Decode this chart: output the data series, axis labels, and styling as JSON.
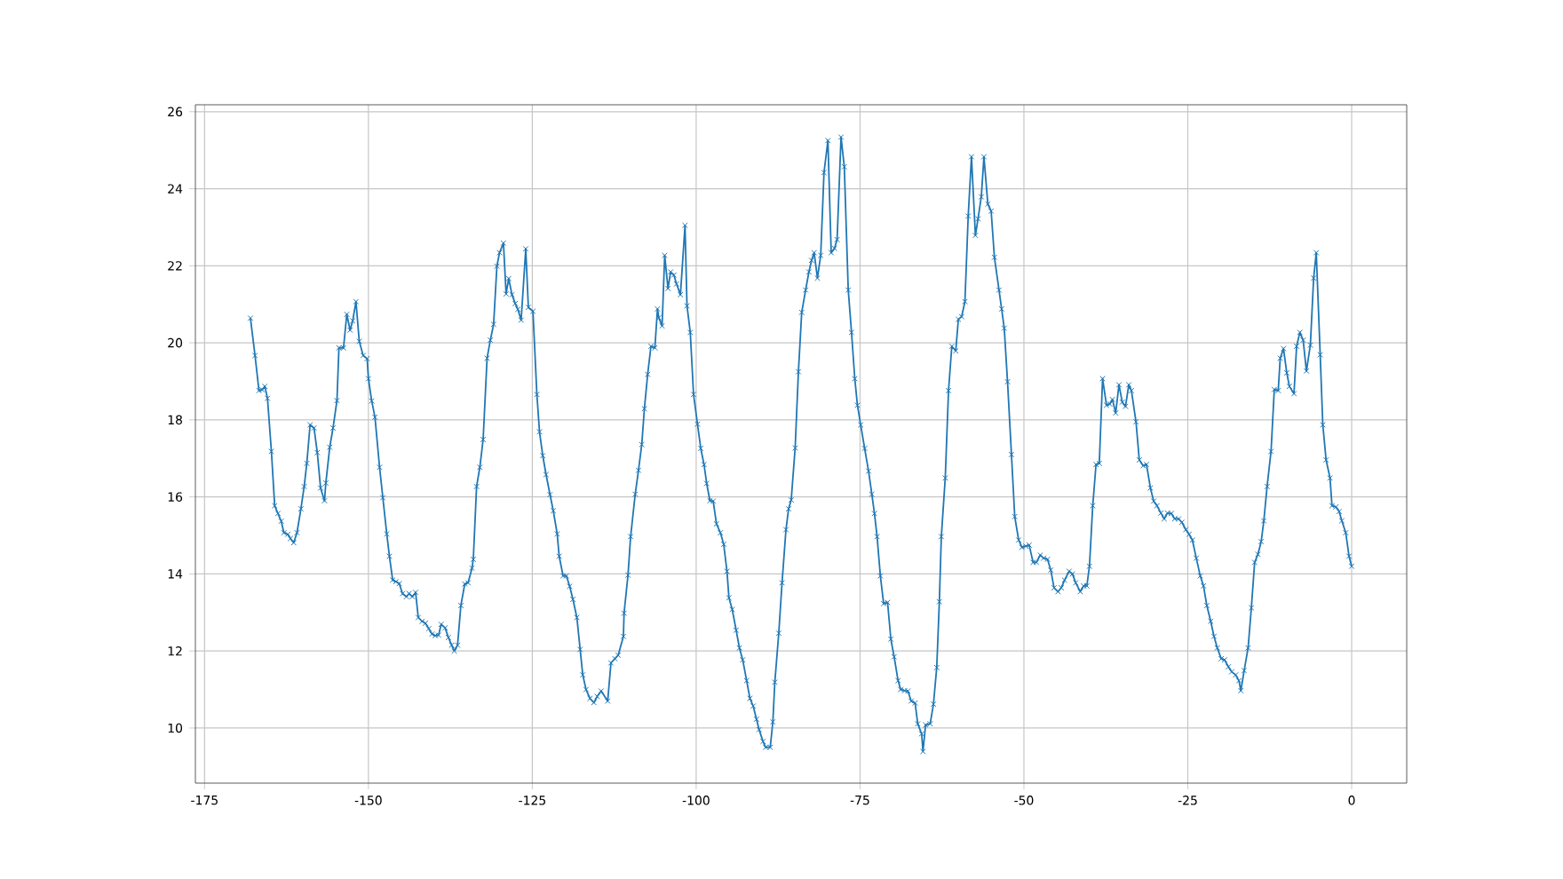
{
  "chart_data": {
    "type": "line",
    "color": "#1f77b4",
    "marker": "cross",
    "line_style": "solid",
    "grid": true,
    "xlim": [
      -176.4,
      8.4
    ],
    "ylim": [
      8.57,
      26.18
    ],
    "xticks": [
      -175,
      -150,
      -125,
      -100,
      -75,
      -50,
      -25,
      0
    ],
    "yticks": [
      10,
      12,
      14,
      16,
      18,
      20,
      22,
      24,
      26
    ],
    "x": [
      -168.0,
      -167.3,
      -166.7,
      -166.2,
      -165.8,
      -165.4,
      -164.8,
      -164.3,
      -163.8,
      -163.3,
      -162.9,
      -162.3,
      -161.9,
      -161.4,
      -160.9,
      -160.3,
      -159.8,
      -159.4,
      -158.9,
      -158.3,
      -157.8,
      -157.3,
      -156.7,
      -156.5,
      -155.9,
      -155.4,
      -154.8,
      -154.5,
      -153.8,
      -153.3,
      -152.8,
      -152.4,
      -151.9,
      -151.4,
      -150.8,
      -150.2,
      -150.0,
      -149.5,
      -149.0,
      -148.3,
      -147.8,
      -147.2,
      -146.8,
      -146.3,
      -145.8,
      -145.3,
      -144.8,
      -144.2,
      -143.8,
      -143.3,
      -142.8,
      -142.4,
      -141.8,
      -141.3,
      -140.8,
      -140.3,
      -139.8,
      -139.3,
      -138.9,
      -138.3,
      -137.8,
      -137.3,
      -136.9,
      -136.4,
      -135.9,
      -135.3,
      -134.8,
      -134.2,
      -134.0,
      -133.5,
      -133.0,
      -132.5,
      -131.9,
      -131.4,
      -130.9,
      -130.4,
      -130.0,
      -129.4,
      -129.0,
      -128.6,
      -128.1,
      -127.6,
      -127.2,
      -126.7,
      -126.0,
      -125.6,
      -124.9,
      -124.3,
      -123.9,
      -123.4,
      -122.9,
      -122.3,
      -121.8,
      -121.2,
      -120.9,
      -120.3,
      -119.8,
      -119.3,
      -118.8,
      -118.2,
      -117.7,
      -117.3,
      -116.8,
      -116.2,
      -115.6,
      -115.1,
      -114.5,
      -113.5,
      -113.0,
      -112.4,
      -111.9,
      -111.1,
      -111.0,
      -110.4,
      -110.0,
      -109.3,
      -108.8,
      -108.3,
      -107.9,
      -107.4,
      -106.9,
      -106.3,
      -105.9,
      -105.7,
      -105.2,
      -104.8,
      -104.3,
      -103.9,
      -103.4,
      -103.0,
      -102.4,
      -101.7,
      -101.4,
      -100.9,
      -100.4,
      -99.8,
      -99.3,
      -98.8,
      -98.4,
      -97.9,
      -97.4,
      -96.9,
      -96.3,
      -95.8,
      -95.3,
      -95.0,
      -94.5,
      -93.9,
      -93.4,
      -92.9,
      -92.3,
      -91.8,
      -91.3,
      -90.8,
      -90.4,
      -89.8,
      -89.4,
      -88.7,
      -88.3,
      -88.0,
      -87.4,
      -86.9,
      -86.3,
      -85.9,
      -85.5,
      -84.9,
      -84.4,
      -83.9,
      -83.3,
      -82.8,
      -82.4,
      -82.0,
      -81.5,
      -81.0,
      -80.5,
      -79.9,
      -79.4,
      -78.9,
      -78.5,
      -77.9,
      -77.4,
      -76.8,
      -76.3,
      -75.8,
      -75.4,
      -74.9,
      -74.3,
      -73.7,
      -73.2,
      -72.8,
      -72.4,
      -71.9,
      -71.4,
      -70.8,
      -70.3,
      -69.8,
      -69.2,
      -68.8,
      -68.2,
      -67.7,
      -67.2,
      -66.6,
      -66.2,
      -65.6,
      -65.4,
      -65.0,
      -64.3,
      -63.8,
      -63.3,
      -62.9,
      -62.6,
      -62.0,
      -61.5,
      -61.0,
      -60.4,
      -60.0,
      -59.5,
      -59.0,
      -58.5,
      -58.0,
      -57.4,
      -57.0,
      -56.5,
      -56.1,
      -55.5,
      -55.0,
      -54.5,
      -53.8,
      -53.4,
      -53.0,
      -52.5,
      -51.9,
      -51.4,
      -50.8,
      -50.3,
      -49.7,
      -49.2,
      -48.6,
      -48.1,
      -47.5,
      -47.0,
      -46.4,
      -45.9,
      -45.4,
      -44.8,
      -44.3,
      -43.8,
      -43.1,
      -42.6,
      -42.1,
      -41.4,
      -40.9,
      -40.4,
      -40.0,
      -39.5,
      -39.0,
      -38.5,
      -38.0,
      -37.4,
      -36.9,
      -36.5,
      -36.0,
      -35.5,
      -35.0,
      -34.5,
      -34.0,
      -33.6,
      -32.9,
      -32.4,
      -31.8,
      -31.3,
      -30.7,
      -30.2,
      -29.7,
      -29.1,
      -28.6,
      -28.1,
      -27.5,
      -27.0,
      -26.4,
      -25.9,
      -25.3,
      -24.8,
      -24.3,
      -23.7,
      -23.1,
      -22.6,
      -22.1,
      -21.5,
      -21.0,
      -20.5,
      -19.9,
      -19.4,
      -18.8,
      -18.3,
      -17.7,
      -17.2,
      -16.9,
      -16.4,
      -15.8,
      -15.3,
      -14.8,
      -14.3,
      -13.8,
      -13.4,
      -12.9,
      -12.3,
      -11.8,
      -11.2,
      -10.9,
      -10.4,
      -9.9,
      -9.5,
      -8.8,
      -8.4,
      -7.9,
      -7.4,
      -6.9,
      -6.3,
      -5.8,
      -5.4,
      -4.8,
      -4.4,
      -3.9,
      -3.3,
      -3.0,
      -2.4,
      -1.9,
      -1.5,
      -0.9,
      -0.4,
      0.0
    ],
    "values": [
      20.64,
      19.67,
      18.76,
      18.78,
      18.87,
      18.56,
      17.18,
      15.77,
      15.57,
      15.37,
      15.07,
      15.03,
      14.92,
      14.81,
      15.07,
      15.69,
      16.27,
      16.87,
      17.87,
      17.79,
      17.15,
      16.23,
      15.9,
      16.36,
      17.29,
      17.79,
      18.5,
      19.87,
      19.87,
      20.74,
      20.33,
      20.57,
      21.07,
      20.04,
      19.67,
      19.59,
      19.07,
      18.49,
      18.07,
      16.77,
      15.98,
      15.04,
      14.46,
      13.84,
      13.8,
      13.75,
      13.49,
      13.41,
      13.49,
      13.41,
      13.52,
      12.87,
      12.77,
      12.72,
      12.58,
      12.44,
      12.4,
      12.41,
      12.69,
      12.6,
      12.35,
      12.15,
      12.0,
      12.15,
      13.18,
      13.74,
      13.77,
      14.15,
      14.38,
      16.27,
      16.77,
      17.49,
      19.6,
      20.07,
      20.48,
      21.99,
      22.34,
      22.59,
      21.27,
      21.67,
      21.25,
      21.02,
      20.87,
      20.59,
      22.44,
      20.92,
      20.82,
      18.66,
      17.69,
      17.07,
      16.58,
      16.06,
      15.64,
      15.04,
      14.46,
      13.95,
      13.95,
      13.68,
      13.34,
      12.87,
      12.04,
      11.38,
      11.0,
      10.77,
      10.66,
      10.82,
      10.96,
      10.7,
      11.69,
      11.8,
      11.89,
      12.38,
      12.98,
      13.97,
      14.97,
      16.07,
      16.69,
      17.36,
      18.29,
      19.18,
      19.91,
      19.87,
      20.88,
      20.65,
      20.44,
      22.27,
      21.41,
      21.84,
      21.76,
      21.53,
      21.25,
      23.05,
      20.96,
      20.27,
      18.66,
      17.89,
      17.26,
      16.84,
      16.35,
      15.9,
      15.89,
      15.3,
      15.07,
      14.77,
      14.07,
      13.38,
      13.08,
      12.54,
      12.08,
      11.77,
      11.23,
      10.77,
      10.57,
      10.23,
      9.96,
      9.65,
      9.5,
      9.5,
      10.16,
      11.19,
      12.46,
      13.77,
      15.15,
      15.69,
      15.92,
      17.27,
      19.25,
      20.79,
      21.37,
      21.84,
      22.14,
      22.34,
      21.68,
      22.27,
      24.42,
      25.25,
      22.34,
      22.45,
      22.68,
      25.34,
      24.57,
      21.37,
      20.27,
      19.07,
      18.38,
      17.87,
      17.26,
      16.67,
      16.07,
      15.57,
      14.97,
      13.95,
      13.23,
      13.26,
      12.31,
      11.85,
      11.23,
      11.0,
      10.97,
      10.96,
      10.7,
      10.65,
      10.11,
      9.85,
      9.39,
      10.08,
      10.11,
      10.62,
      11.57,
      13.28,
      14.97,
      16.49,
      18.76,
      19.91,
      19.79,
      20.61,
      20.68,
      21.07,
      23.29,
      24.83,
      22.79,
      23.22,
      23.79,
      24.83,
      23.6,
      23.42,
      22.22,
      21.37,
      20.88,
      20.38,
      18.99,
      17.1,
      15.49,
      14.88,
      14.69,
      14.72,
      14.75,
      14.3,
      14.3,
      14.49,
      14.41,
      14.38,
      14.1,
      13.64,
      13.54,
      13.64,
      13.84,
      14.07,
      14.0,
      13.77,
      13.54,
      13.69,
      13.69,
      14.2,
      15.77,
      16.84,
      16.87,
      19.07,
      18.38,
      18.41,
      18.53,
      18.18,
      18.91,
      18.46,
      18.35,
      18.91,
      18.76,
      17.95,
      16.96,
      16.81,
      16.84,
      16.23,
      15.89,
      15.77,
      15.58,
      15.43,
      15.58,
      15.57,
      15.43,
      15.43,
      15.34,
      15.15,
      15.03,
      14.88,
      14.41,
      13.95,
      13.69,
      13.18,
      12.77,
      12.38,
      12.08,
      11.8,
      11.77,
      11.59,
      11.46,
      11.38,
      11.23,
      10.97,
      11.49,
      12.08,
      13.12,
      14.3,
      14.51,
      14.84,
      15.38,
      16.27,
      17.18,
      18.79,
      18.76,
      19.6,
      19.85,
      19.22,
      18.87,
      18.68,
      19.91,
      20.27,
      20.07,
      19.27,
      19.94,
      21.68,
      22.34,
      19.69,
      17.87,
      16.96,
      16.49,
      15.77,
      15.74,
      15.62,
      15.38,
      15.07,
      14.46,
      14.2
    ]
  }
}
